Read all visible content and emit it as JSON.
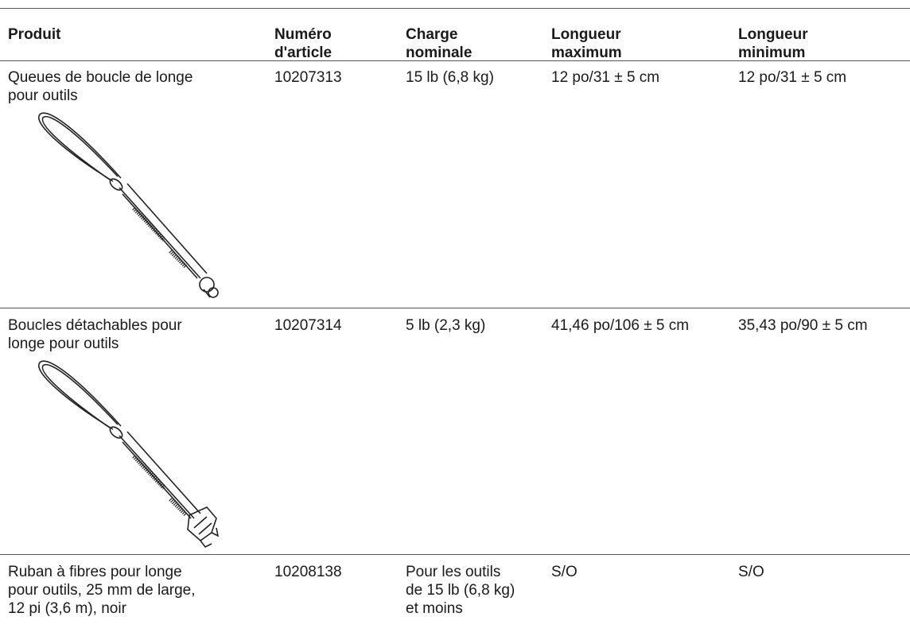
{
  "table": {
    "header": [
      [
        "Produit"
      ],
      [
        "Numéro",
        "d'article"
      ],
      [
        "Charge",
        "nominale"
      ],
      [
        "Longueur",
        "maximum"
      ],
      [
        "Longueur",
        "minimum"
      ]
    ],
    "rows": [
      [
        [
          "Queues de boucle de longe",
          "pour outils"
        ],
        [
          "10207313"
        ],
        [
          "15 lb (6,8 kg)"
        ],
        [
          "12 po/31 ± 5 cm"
        ],
        [
          "12 po/31 ± 5 cm"
        ]
      ],
      [
        [
          "Boucles détachables pour",
          "longe pour outils"
        ],
        [
          "10207314"
        ],
        [
          "5 lb (2,3 kg)"
        ],
        [
          "41,46 po/106 ± 5 cm"
        ],
        [
          "35,43 po/90 ± 5 cm"
        ]
      ],
      [
        [
          "Ruban à fibres pour longe",
          "pour outils, 25 mm de large,",
          "12 pi (3,6 m), noir"
        ],
        [
          "10208138"
        ],
        [
          "Pour les outils",
          "de 15 lb (6,8 kg)",
          "et moins"
        ],
        [
          "S/O"
        ],
        [
          "S/O"
        ]
      ]
    ]
  }
}
